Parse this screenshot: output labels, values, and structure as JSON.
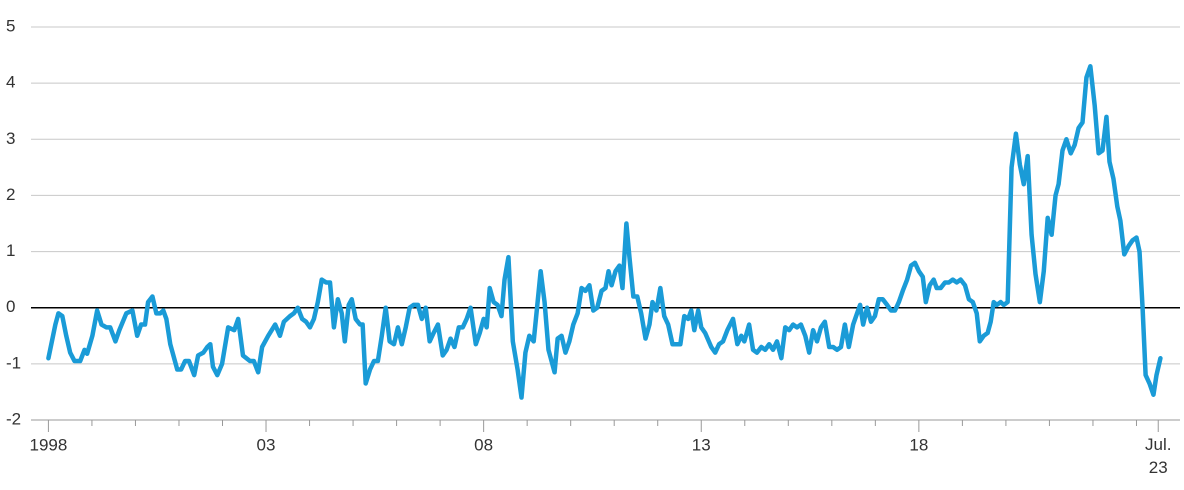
{
  "chart_data": {
    "type": "line",
    "color": "#1a9bd7",
    "xlim": [
      1997.6,
      2024.0
    ],
    "xticks": [
      1998,
      {
        "value": 2003,
        "label": "03"
      },
      {
        "value": 2008,
        "label": "08"
      },
      {
        "value": 2013,
        "label": "13"
      },
      {
        "value": 2018,
        "label": "18"
      },
      {
        "value": 2023.5,
        "label": "Jul. 23"
      }
    ],
    "xminorticks": [
      1999,
      2000,
      2001,
      2002,
      2004,
      2005,
      2006,
      2007,
      2009,
      2010,
      2011,
      2012,
      2014,
      2015,
      2016,
      2017,
      2019,
      2020,
      2021,
      2022,
      2023
    ],
    "ylim": [
      -2,
      5
    ],
    "yticks": [
      -2,
      -1,
      0,
      1,
      2,
      3,
      4,
      5
    ],
    "grid": true,
    "x": [
      1998.0,
      1998.16,
      1998.23,
      1998.32,
      1998.41,
      1998.5,
      1998.6,
      1998.73,
      1998.83,
      1998.89,
      1999.01,
      1999.12,
      1999.22,
      1999.33,
      1999.42,
      1999.54,
      1999.63,
      1999.79,
      1999.93,
      2000.04,
      2000.13,
      2000.22,
      2000.29,
      2000.39,
      2000.48,
      2000.57,
      2000.64,
      2000.71,
      2000.8,
      2000.96,
      2001.05,
      2001.14,
      2001.23,
      2001.35,
      2001.44,
      2001.56,
      2001.65,
      2001.72,
      2001.78,
      2001.88,
      2001.99,
      2002.13,
      2002.27,
      2002.36,
      2002.47,
      2002.63,
      2002.72,
      2002.82,
      2002.91,
      2003.05,
      2003.21,
      2003.32,
      2003.41,
      2003.55,
      2003.64,
      2003.73,
      2003.83,
      2003.92,
      2004.01,
      2004.1,
      2004.19,
      2004.28,
      2004.38,
      2004.47,
      2004.56,
      2004.65,
      2004.74,
      2004.81,
      2004.9,
      2004.97,
      2005.06,
      2005.16,
      2005.22,
      2005.29,
      2005.39,
      2005.48,
      2005.57,
      2005.66,
      2005.75,
      2005.84,
      2005.94,
      2006.03,
      2006.12,
      2006.21,
      2006.3,
      2006.39,
      2006.49,
      2006.58,
      2006.67,
      2006.76,
      2006.85,
      2006.95,
      2007.06,
      2007.15,
      2007.24,
      2007.33,
      2007.43,
      2007.52,
      2007.61,
      2007.7,
      2007.82,
      2007.91,
      2008.0,
      2008.07,
      2008.14,
      2008.23,
      2008.32,
      2008.41,
      2008.48,
      2008.57,
      2008.67,
      2008.78,
      2008.87,
      2008.96,
      2009.05,
      2009.15,
      2009.24,
      2009.31,
      2009.4,
      2009.49,
      2009.63,
      2009.7,
      2009.79,
      2009.88,
      2009.97,
      2010.06,
      2010.16,
      2010.25,
      2010.34,
      2010.43,
      2010.52,
      2010.61,
      2010.71,
      2010.8,
      2010.87,
      2010.94,
      2011.03,
      2011.12,
      2011.19,
      2011.28,
      2011.35,
      2011.44,
      2011.53,
      2011.62,
      2011.72,
      2011.81,
      2011.88,
      2011.97,
      2012.06,
      2012.15,
      2012.24,
      2012.34,
      2012.43,
      2012.52,
      2012.61,
      2012.7,
      2012.77,
      2012.84,
      2012.93,
      2013.0,
      2013.09,
      2013.23,
      2013.32,
      2013.41,
      2013.5,
      2013.6,
      2013.73,
      2013.83,
      2013.92,
      2013.99,
      2014.1,
      2014.19,
      2014.28,
      2014.38,
      2014.47,
      2014.56,
      2014.65,
      2014.74,
      2014.84,
      2014.93,
      2015.02,
      2015.11,
      2015.2,
      2015.29,
      2015.39,
      2015.48,
      2015.57,
      2015.66,
      2015.75,
      2015.84,
      2015.94,
      2016.03,
      2016.12,
      2016.21,
      2016.3,
      2016.39,
      2016.49,
      2016.58,
      2016.65,
      2016.72,
      2016.81,
      2016.9,
      2016.99,
      2017.08,
      2017.17,
      2017.27,
      2017.36,
      2017.45,
      2017.54,
      2017.63,
      2017.73,
      2017.82,
      2017.91,
      2018.0,
      2018.09,
      2018.16,
      2018.25,
      2018.34,
      2018.41,
      2018.5,
      2018.6,
      2018.69,
      2018.78,
      2018.87,
      2018.96,
      2019.06,
      2019.15,
      2019.24,
      2019.33,
      2019.4,
      2019.49,
      2019.58,
      2019.65,
      2019.72,
      2019.79,
      2019.88,
      2019.95,
      2020.04,
      2020.13,
      2020.23,
      2020.32,
      2020.41,
      2020.5,
      2020.59,
      2020.68,
      2020.78,
      2020.87,
      2020.96,
      2021.05,
      2021.14,
      2021.21,
      2021.3,
      2021.39,
      2021.49,
      2021.58,
      2021.67,
      2021.76,
      2021.85,
      2021.94,
      2022.04,
      2022.13,
      2022.22,
      2022.31,
      2022.38,
      2022.47,
      2022.56,
      2022.63,
      2022.72,
      2022.82,
      2022.91,
      2023.0,
      2023.07,
      2023.14,
      2023.21,
      2023.3,
      2023.39,
      2023.46,
      2023.55
    ],
    "values": [
      -0.9,
      -0.3,
      -0.1,
      -0.15,
      -0.5,
      -0.8,
      -0.95,
      -0.95,
      -0.75,
      -0.82,
      -0.5,
      -0.05,
      -0.3,
      -0.35,
      -0.35,
      -0.6,
      -0.4,
      -0.1,
      -0.05,
      -0.5,
      -0.3,
      -0.3,
      0.1,
      0.2,
      -0.1,
      -0.1,
      -0.05,
      -0.2,
      -0.65,
      -1.1,
      -1.1,
      -0.95,
      -0.95,
      -1.2,
      -0.85,
      -0.8,
      -0.7,
      -0.65,
      -1.05,
      -1.2,
      -1.0,
      -0.35,
      -0.4,
      -0.2,
      -0.85,
      -0.95,
      -0.95,
      -1.15,
      -0.7,
      -0.5,
      -0.3,
      -0.5,
      -0.25,
      -0.15,
      -0.1,
      0.0,
      -0.2,
      -0.25,
      -0.35,
      -0.2,
      0.1,
      0.5,
      0.45,
      0.45,
      -0.35,
      0.15,
      -0.1,
      -0.6,
      0.05,
      0.15,
      -0.2,
      -0.3,
      -0.3,
      -1.35,
      -1.1,
      -0.95,
      -0.95,
      -0.5,
      0.0,
      -0.6,
      -0.65,
      -0.35,
      -0.65,
      -0.35,
      0.0,
      0.05,
      0.05,
      -0.2,
      0.0,
      -0.6,
      -0.45,
      -0.3,
      -0.85,
      -0.75,
      -0.55,
      -0.7,
      -0.35,
      -0.35,
      -0.2,
      0.0,
      -0.65,
      -0.45,
      -0.2,
      -0.35,
      0.35,
      0.1,
      0.05,
      -0.15,
      0.5,
      0.9,
      -0.6,
      -1.1,
      -1.6,
      -0.8,
      -0.5,
      -0.6,
      0.1,
      0.65,
      0.1,
      -0.75,
      -1.15,
      -0.55,
      -0.5,
      -0.8,
      -0.6,
      -0.3,
      -0.1,
      0.35,
      0.3,
      0.4,
      -0.05,
      0.0,
      0.3,
      0.35,
      0.65,
      0.4,
      0.65,
      0.75,
      0.35,
      1.5,
      0.9,
      0.2,
      0.2,
      -0.1,
      -0.55,
      -0.3,
      0.1,
      -0.05,
      0.35,
      -0.15,
      -0.3,
      -0.65,
      -0.65,
      -0.65,
      -0.15,
      -0.2,
      -0.05,
      -0.4,
      -0.05,
      -0.35,
      -0.45,
      -0.7,
      -0.8,
      -0.65,
      -0.6,
      -0.4,
      -0.2,
      -0.65,
      -0.5,
      -0.6,
      -0.3,
      -0.75,
      -0.8,
      -0.7,
      -0.75,
      -0.65,
      -0.75,
      -0.6,
      -0.9,
      -0.35,
      -0.4,
      -0.3,
      -0.35,
      -0.3,
      -0.5,
      -0.8,
      -0.4,
      -0.6,
      -0.35,
      -0.25,
      -0.7,
      -0.7,
      -0.75,
      -0.7,
      -0.3,
      -0.7,
      -0.3,
      -0.1,
      0.05,
      -0.3,
      0.0,
      -0.25,
      -0.15,
      0.15,
      0.15,
      0.05,
      -0.05,
      -0.05,
      0.1,
      0.3,
      0.5,
      0.75,
      0.8,
      0.65,
      0.55,
      0.1,
      0.4,
      0.5,
      0.35,
      0.35,
      0.45,
      0.45,
      0.5,
      0.45,
      0.5,
      0.4,
      0.15,
      0.1,
      -0.1,
      -0.6,
      -0.5,
      -0.45,
      -0.25,
      0.1,
      0.05,
      0.1,
      0.05,
      0.1,
      2.5,
      3.1,
      2.55,
      2.2,
      2.7,
      1.3,
      0.6,
      0.1,
      0.65,
      1.6,
      1.3,
      2.0,
      2.2,
      2.8,
      3.0,
      2.75,
      2.9,
      3.2,
      3.3,
      4.1,
      4.3,
      3.6,
      2.75,
      2.8,
      3.4,
      2.6,
      2.3,
      1.8,
      1.55,
      0.95,
      1.1,
      1.2,
      1.25,
      1.0,
      0.0,
      -1.2,
      -1.35,
      -1.55,
      -1.2,
      -0.9
    ]
  }
}
